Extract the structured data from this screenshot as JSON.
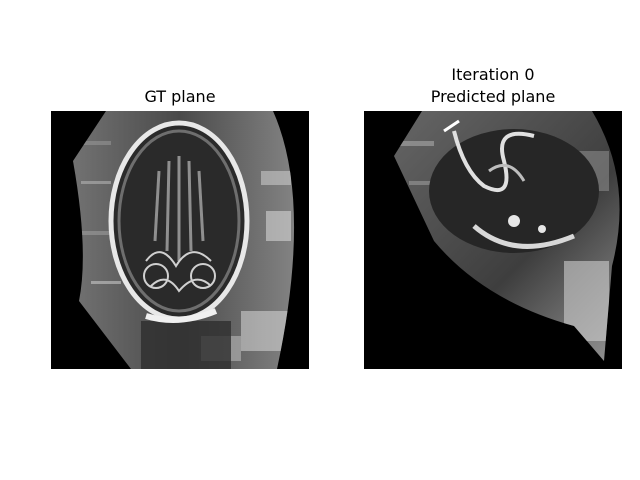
{
  "figure": {
    "background": "#ffffff",
    "panels": [
      {
        "title_lines": [
          "GT plane"
        ],
        "image": "grayscale ultrasound slice"
      },
      {
        "title_lines": [
          "Iteration 0",
          "Predicted plane"
        ],
        "image": "grayscale ultrasound slice"
      }
    ]
  }
}
